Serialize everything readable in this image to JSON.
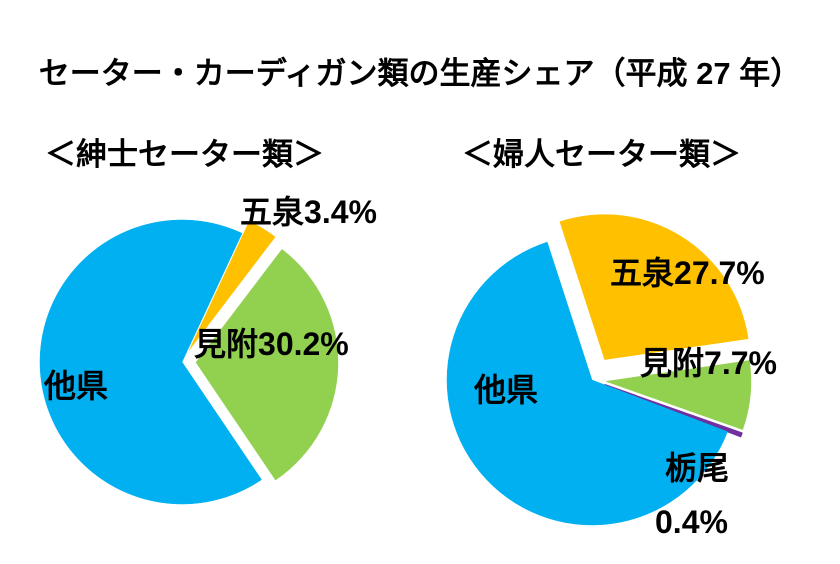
{
  "title": "セーター・カーディガン類の生産シェア（平成 27 年）",
  "chart_data": [
    {
      "type": "pie",
      "title": "＜紳士セーター類＞",
      "slices": [
        {
          "label": "五泉",
          "value": 3.4,
          "value_label": "3.4%",
          "color": "#FFC000",
          "exploded": true
        },
        {
          "label": "見附",
          "value": 30.2,
          "value_label": "30.2%",
          "color": "#92D050",
          "exploded": true
        },
        {
          "label": "他県",
          "value": 66.4,
          "color": "#00B0F0",
          "exploded": false
        }
      ]
    },
    {
      "type": "pie",
      "title": "＜婦人セーター類＞",
      "slices": [
        {
          "label": "五泉",
          "value": 27.7,
          "value_label": "27.7%",
          "color": "#FFC000",
          "exploded": true
        },
        {
          "label": "見附",
          "value": 7.7,
          "value_label": "7.7%",
          "color": "#92D050",
          "exploded": true
        },
        {
          "label": "栃尾",
          "value": 0.4,
          "value_label": "0.4%",
          "color": "#7030A0",
          "exploded": true
        },
        {
          "label": "他県",
          "value": 64.2,
          "color": "#00B0F0",
          "exploded": false
        }
      ]
    }
  ]
}
